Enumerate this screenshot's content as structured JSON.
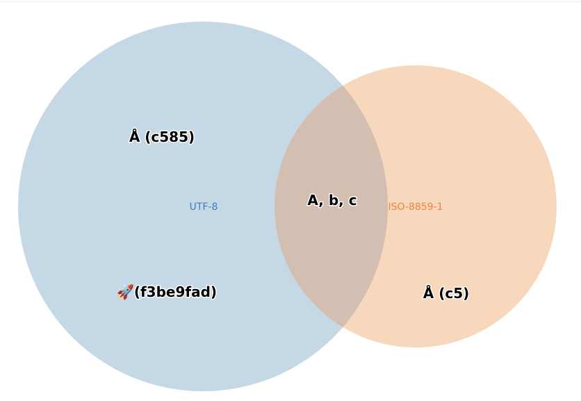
{
  "sets": [
    {
      "id": "utf8",
      "label": "UTF-8",
      "fill": "#c5d8e6",
      "label_color": "#3f7fbf"
    },
    {
      "id": "iso",
      "label": "ISO-8859-1",
      "fill": "#f7d8bc",
      "label_color": "#f0843a"
    }
  ],
  "overlap_fill": "#d3bfb2",
  "regions": {
    "utf8_only_top": "Å (c585)",
    "utf8_only_bottom": "🚀(f3be9fad)",
    "intersection": "A, b, c",
    "iso_only": "Å (c5)"
  }
}
